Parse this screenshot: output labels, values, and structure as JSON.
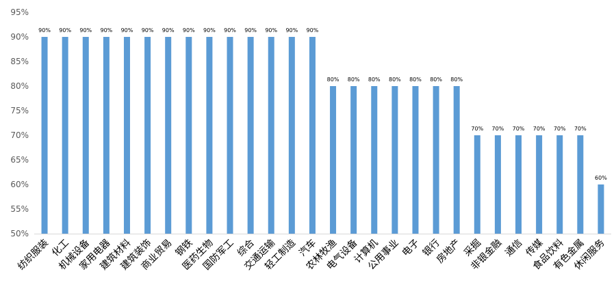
{
  "chart_data": {
    "type": "bar",
    "title": "",
    "xlabel": "",
    "ylabel": "",
    "ylim": [
      0.5,
      0.95
    ],
    "y_ticks": [
      "50%",
      "55%",
      "60%",
      "65%",
      "70%",
      "75%",
      "80%",
      "85%",
      "90%",
      "95%"
    ],
    "grid": false,
    "bar_color": "#5B9BD5",
    "categories": [
      "纺织服装",
      "化工",
      "机械设备",
      "家用电器",
      "建筑材料",
      "建筑装饰",
      "商业贸易",
      "钢铁",
      "医药生物",
      "国防军工",
      "综合",
      "交通运输",
      "轻工制造",
      "汽车",
      "农林牧渔",
      "电气设备",
      "计算机",
      "公用事业",
      "电子",
      "银行",
      "房地产",
      "采掘",
      "非银金融",
      "通信",
      "传媒",
      "食品饮料",
      "有色金属",
      "休闲服务"
    ],
    "values": [
      0.9,
      0.9,
      0.9,
      0.9,
      0.9,
      0.9,
      0.9,
      0.9,
      0.9,
      0.9,
      0.9,
      0.9,
      0.9,
      0.9,
      0.8,
      0.8,
      0.8,
      0.8,
      0.8,
      0.8,
      0.8,
      0.7,
      0.7,
      0.7,
      0.7,
      0.7,
      0.7,
      0.6
    ],
    "data_labels": [
      "90%",
      "90%",
      "90%",
      "90%",
      "90%",
      "90%",
      "90%",
      "90%",
      "90%",
      "90%",
      "90%",
      "90%",
      "90%",
      "90%",
      "80%",
      "80%",
      "80%",
      "80%",
      "80%",
      "80%",
      "80%",
      "70%",
      "70%",
      "70%",
      "70%",
      "70%",
      "70%",
      "60%"
    ]
  }
}
